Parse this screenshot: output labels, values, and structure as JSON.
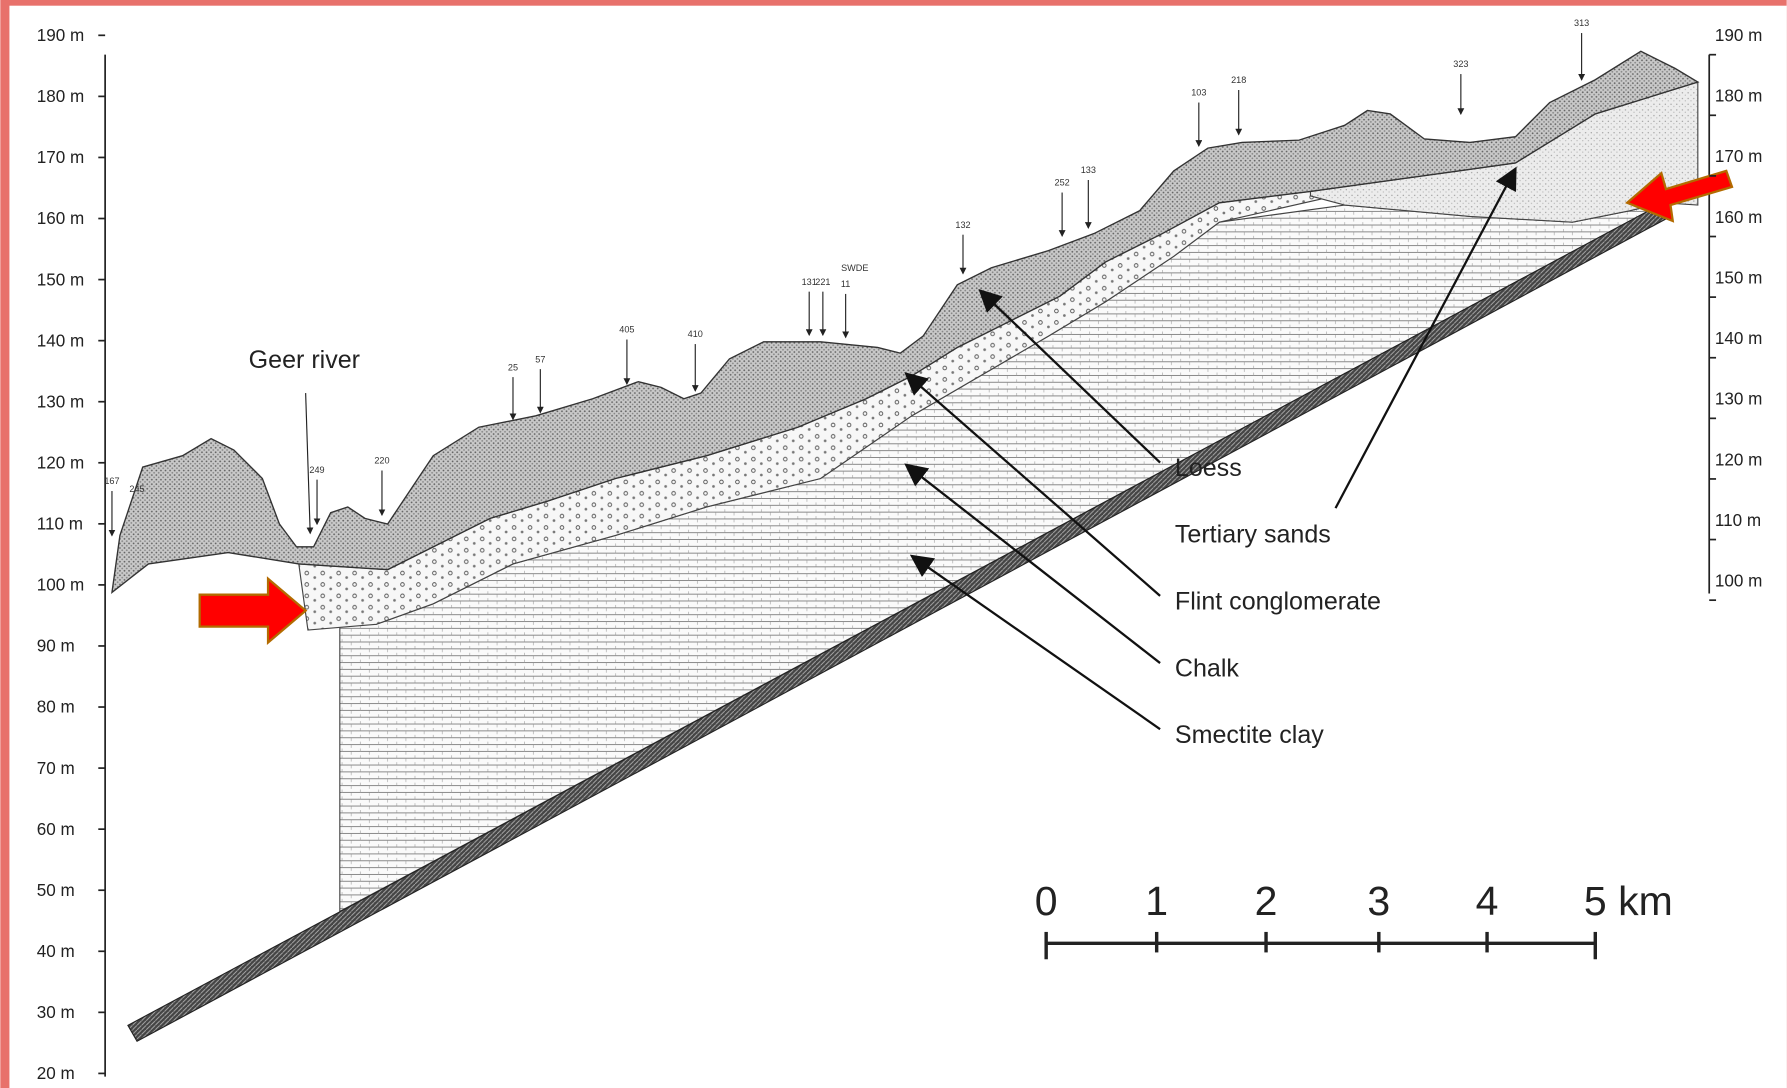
{
  "left_axis": {
    "labels": [
      "190 m",
      "180 m",
      "170 m",
      "160 m",
      "150 m",
      "140 m",
      "130 m",
      "120 m",
      "110 m",
      "100 m",
      "90 m",
      "80 m",
      "70 m",
      "60 m",
      "50 m",
      "40 m",
      "30 m",
      "20 m"
    ]
  },
  "right_axis": {
    "labels": [
      "190 m",
      "180 m",
      "170 m",
      "160 m",
      "150 m",
      "140 m",
      "130 m",
      "120 m",
      "110 m",
      "100 m"
    ]
  },
  "annotations": {
    "river": "Geer river"
  },
  "layers": [
    "Loess",
    "Tertiary sands",
    "Flint conglomerate",
    "Chalk",
    "Smectite clay"
  ],
  "scale_bar": {
    "labels": [
      "0",
      "1",
      "2",
      "3",
      "4",
      "5 km"
    ]
  },
  "boreholes": [
    "167",
    "245",
    "249",
    "220",
    "25",
    "57",
    "405",
    "410",
    "131",
    "221",
    "11",
    "SWDE",
    "132",
    "252",
    "133",
    "103",
    "218",
    "323",
    "313"
  ]
}
